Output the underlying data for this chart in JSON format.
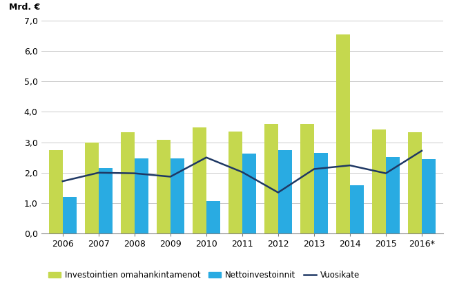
{
  "years": [
    "2006",
    "2007",
    "2008",
    "2009",
    "2010",
    "2011",
    "2012",
    "2013",
    "2014",
    "2015",
    "2016*"
  ],
  "investoinnit_omahankinta": [
    2.75,
    2.98,
    3.32,
    3.08,
    3.48,
    3.35,
    3.6,
    3.6,
    6.55,
    3.43,
    3.32
  ],
  "nettoinvestoinnit": [
    1.2,
    2.15,
    2.48,
    2.48,
    1.07,
    2.62,
    2.73,
    2.65,
    1.58,
    2.52,
    2.44
  ],
  "vuosikate": [
    1.72,
    2.0,
    1.98,
    1.87,
    2.5,
    2.02,
    1.35,
    2.12,
    2.24,
    1.98,
    2.72
  ],
  "bar_color_green": "#c5d84e",
  "bar_color_blue": "#29abe2",
  "line_color": "#1f3864",
  "ylabel": "Mrd. €",
  "ylim": [
    0,
    7.0
  ],
  "yticks": [
    0.0,
    1.0,
    2.0,
    3.0,
    4.0,
    5.0,
    6.0,
    7.0
  ],
  "legend_green": "Investointien omahankintamenot",
  "legend_blue": "Nettoinvestoinnit",
  "legend_line": "Vuosikate",
  "bar_width": 0.38,
  "figsize": [
    6.62,
    4.24
  ],
  "dpi": 100
}
